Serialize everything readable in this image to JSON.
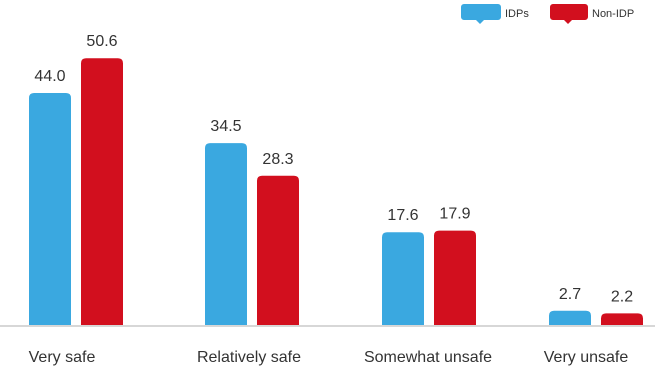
{
  "chart_data": {
    "type": "bar",
    "categories": [
      "Very safe",
      "Relatively safe",
      "Somewhat unsafe",
      "Very unsafe"
    ],
    "series": [
      {
        "name": "IDPs",
        "color": "#3aa8e0",
        "values": [
          44.0,
          34.5,
          17.6,
          2.7
        ]
      },
      {
        "name": "Non-IDP",
        "color": "#d20f1e",
        "values": [
          50.6,
          28.3,
          17.9,
          2.2
        ]
      }
    ],
    "ylim": [
      0,
      55
    ],
    "grid": false,
    "legend_position": "top-right",
    "value_labels": true
  }
}
